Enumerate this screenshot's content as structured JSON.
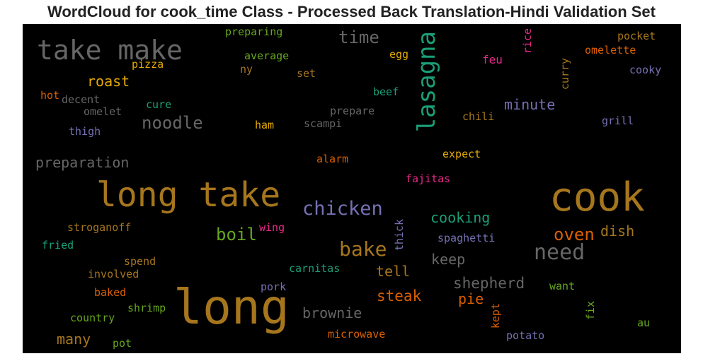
{
  "title": "WordCloud for cook_time Class - Processed Back Translation-Hindi Validation Set",
  "background": "#000000",
  "palette": {
    "gold": "#a6761d",
    "gray": "#666666",
    "green": "#66a61e",
    "teal": "#1b9e77",
    "orange": "#d95f02",
    "purple": "#7570b3",
    "magenta": "#e7298a",
    "yellow": "#e6ab02"
  },
  "words": [
    {
      "text": "preparing",
      "color": "#66a61e"
    },
    {
      "text": "take make",
      "color": "#666666"
    },
    {
      "text": "time",
      "color": "#666666"
    },
    {
      "text": "lasagna",
      "color": "#1b9e77"
    },
    {
      "text": "rice",
      "color": "#e7298a"
    },
    {
      "text": "pocket",
      "color": "#a6761d"
    },
    {
      "text": "omelette",
      "color": "#d95f02"
    },
    {
      "text": "average",
      "color": "#66a61e"
    },
    {
      "text": "egg",
      "color": "#e6ab02"
    },
    {
      "text": "feu",
      "color": "#e7298a"
    },
    {
      "text": "curry",
      "color": "#a6761d"
    },
    {
      "text": "cooky",
      "color": "#7570b3"
    },
    {
      "text": "pizza",
      "color": "#e6ab02"
    },
    {
      "text": "ny",
      "color": "#a6761d"
    },
    {
      "text": "set",
      "color": "#a6761d"
    },
    {
      "text": "roast",
      "color": "#e6ab02"
    },
    {
      "text": "hot",
      "color": "#d95f02"
    },
    {
      "text": "decent",
      "color": "#666666"
    },
    {
      "text": "beef",
      "color": "#1b9e77"
    },
    {
      "text": "cure",
      "color": "#1b9e77"
    },
    {
      "text": "minute",
      "color": "#7570b3"
    },
    {
      "text": "omelet",
      "color": "#666666"
    },
    {
      "text": "prepare",
      "color": "#666666"
    },
    {
      "text": "noodle",
      "color": "#666666"
    },
    {
      "text": "chili",
      "color": "#a6761d"
    },
    {
      "text": "grill",
      "color": "#7570b3"
    },
    {
      "text": "ham",
      "color": "#e6ab02"
    },
    {
      "text": "scampi",
      "color": "#666666"
    },
    {
      "text": "thigh",
      "color": "#7570b3"
    },
    {
      "text": "expect",
      "color": "#e6ab02"
    },
    {
      "text": "preparation",
      "color": "#666666"
    },
    {
      "text": "alarm",
      "color": "#d95f02"
    },
    {
      "text": "fajitas",
      "color": "#e7298a"
    },
    {
      "text": "long take",
      "color": "#a6761d"
    },
    {
      "text": "cook",
      "color": "#a6761d"
    },
    {
      "text": "chicken",
      "color": "#7570b3"
    },
    {
      "text": "cooking",
      "color": "#1b9e77"
    },
    {
      "text": "stroganoff",
      "color": "#a6761d"
    },
    {
      "text": "wing",
      "color": "#e7298a"
    },
    {
      "text": "boil",
      "color": "#66a61e"
    },
    {
      "text": "thick",
      "color": "#7570b3"
    },
    {
      "text": "oven",
      "color": "#d95f02"
    },
    {
      "text": "dish",
      "color": "#a6761d"
    },
    {
      "text": "spaghetti",
      "color": "#7570b3"
    },
    {
      "text": "fried",
      "color": "#1b9e77"
    },
    {
      "text": "bake",
      "color": "#a6761d"
    },
    {
      "text": "need",
      "color": "#666666"
    },
    {
      "text": "keep",
      "color": "#666666"
    },
    {
      "text": "spend",
      "color": "#a6761d"
    },
    {
      "text": "carnitas",
      "color": "#1b9e77"
    },
    {
      "text": "tell",
      "color": "#a6761d"
    },
    {
      "text": "involved",
      "color": "#a6761d"
    },
    {
      "text": "shepherd",
      "color": "#666666"
    },
    {
      "text": "pork",
      "color": "#7570b3"
    },
    {
      "text": "want",
      "color": "#66a61e"
    },
    {
      "text": "baked",
      "color": "#d95f02"
    },
    {
      "text": "steak",
      "color": "#d95f02"
    },
    {
      "text": "long",
      "color": "#a6761d"
    },
    {
      "text": "pie",
      "color": "#d95f02"
    },
    {
      "text": "fix",
      "color": "#66a61e"
    },
    {
      "text": "shrimp",
      "color": "#66a61e"
    },
    {
      "text": "kept",
      "color": "#d95f02"
    },
    {
      "text": "country",
      "color": "#66a61e"
    },
    {
      "text": "brownie",
      "color": "#666666"
    },
    {
      "text": "au",
      "color": "#66a61e"
    },
    {
      "text": "many",
      "color": "#a6761d"
    },
    {
      "text": "pot",
      "color": "#66a61e"
    },
    {
      "text": "microwave",
      "color": "#d95f02"
    },
    {
      "text": "potato",
      "color": "#7570b3"
    }
  ]
}
